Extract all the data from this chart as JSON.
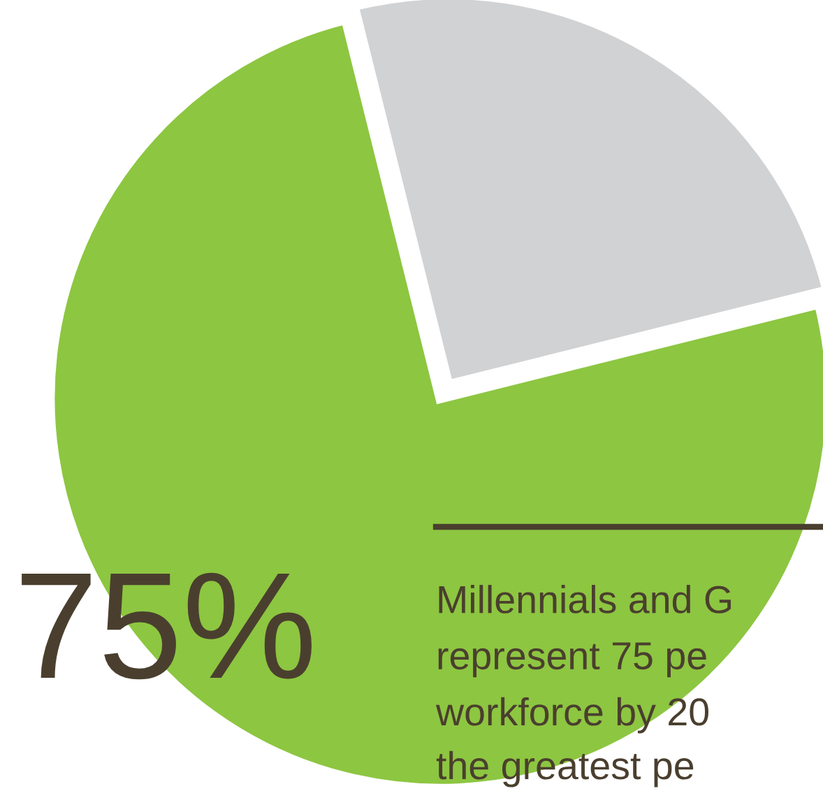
{
  "chart_data": {
    "type": "pie",
    "categories": [
      null,
      null
    ],
    "values": [
      25,
      75
    ],
    "colors": [
      "#d1d2d4",
      "#8dc641"
    ],
    "title": "75%",
    "annotations": [
      "Millennials and G",
      "represent 75 pe",
      "workforce by 20",
      "the greatest pe"
    ],
    "legend": false
  }
}
